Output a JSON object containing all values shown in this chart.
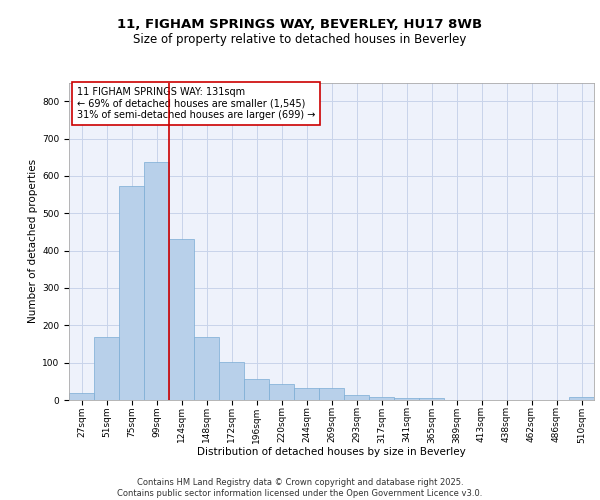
{
  "title_line1": "11, FIGHAM SPRINGS WAY, BEVERLEY, HU17 8WB",
  "title_line2": "Size of property relative to detached houses in Beverley",
  "xlabel": "Distribution of detached houses by size in Beverley",
  "ylabel": "Number of detached properties",
  "bar_labels": [
    "27sqm",
    "51sqm",
    "75sqm",
    "99sqm",
    "124sqm",
    "148sqm",
    "172sqm",
    "196sqm",
    "220sqm",
    "244sqm",
    "269sqm",
    "293sqm",
    "317sqm",
    "341sqm",
    "365sqm",
    "389sqm",
    "413sqm",
    "438sqm",
    "462sqm",
    "486sqm",
    "510sqm"
  ],
  "bar_values": [
    18,
    168,
    573,
    638,
    430,
    170,
    103,
    57,
    44,
    32,
    32,
    14,
    9,
    5,
    5,
    0,
    0,
    0,
    0,
    0,
    7
  ],
  "bar_color": "#b8d0ea",
  "bar_edge_color": "#7aacd4",
  "vline_color": "#cc0000",
  "vline_index": 3.5,
  "annotation_text": "11 FIGHAM SPRINGS WAY: 131sqm\n← 69% of detached houses are smaller (1,545)\n31% of semi-detached houses are larger (699) →",
  "annotation_box_color": "#ffffff",
  "annotation_box_edge_color": "#cc0000",
  "ylim": [
    0,
    850
  ],
  "yticks": [
    0,
    100,
    200,
    300,
    400,
    500,
    600,
    700,
    800
  ],
  "footer_text": "Contains HM Land Registry data © Crown copyright and database right 2025.\nContains public sector information licensed under the Open Government Licence v3.0.",
  "background_color": "#eef2fb",
  "grid_color": "#c8d4ea",
  "title_fontsize": 9.5,
  "subtitle_fontsize": 8.5,
  "axis_label_fontsize": 7.5,
  "tick_fontsize": 6.5,
  "annotation_fontsize": 7,
  "footer_fontsize": 6
}
